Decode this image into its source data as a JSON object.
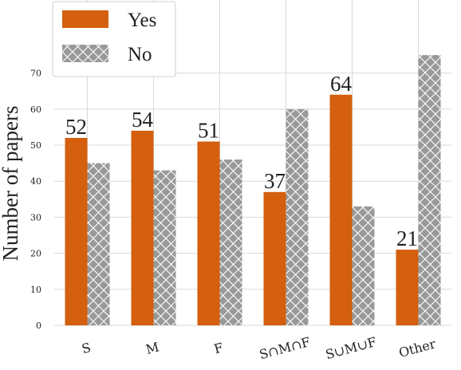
{
  "chart_data": {
    "type": "bar",
    "categories": [
      "S",
      "M",
      "F",
      "S∩M∩F",
      "S∪M∪F",
      "Other"
    ],
    "series": [
      {
        "name": "Yes",
        "values": [
          52,
          54,
          51,
          37,
          64,
          21
        ],
        "color": "#d35f0f",
        "pattern": "solid",
        "show_labels": true
      },
      {
        "name": "No",
        "values": [
          45,
          43,
          46,
          60,
          33,
          75
        ],
        "color": "#999999",
        "pattern": "crosshatch",
        "show_labels": false
      }
    ],
    "ylabel": "Number of papers",
    "xlabel": "",
    "ylim": [
      0,
      77
    ],
    "yticks": [
      0,
      10,
      20,
      30,
      40,
      50,
      60,
      70
    ],
    "grid": true,
    "legend": "top-left",
    "xtick_rotation": -15
  }
}
